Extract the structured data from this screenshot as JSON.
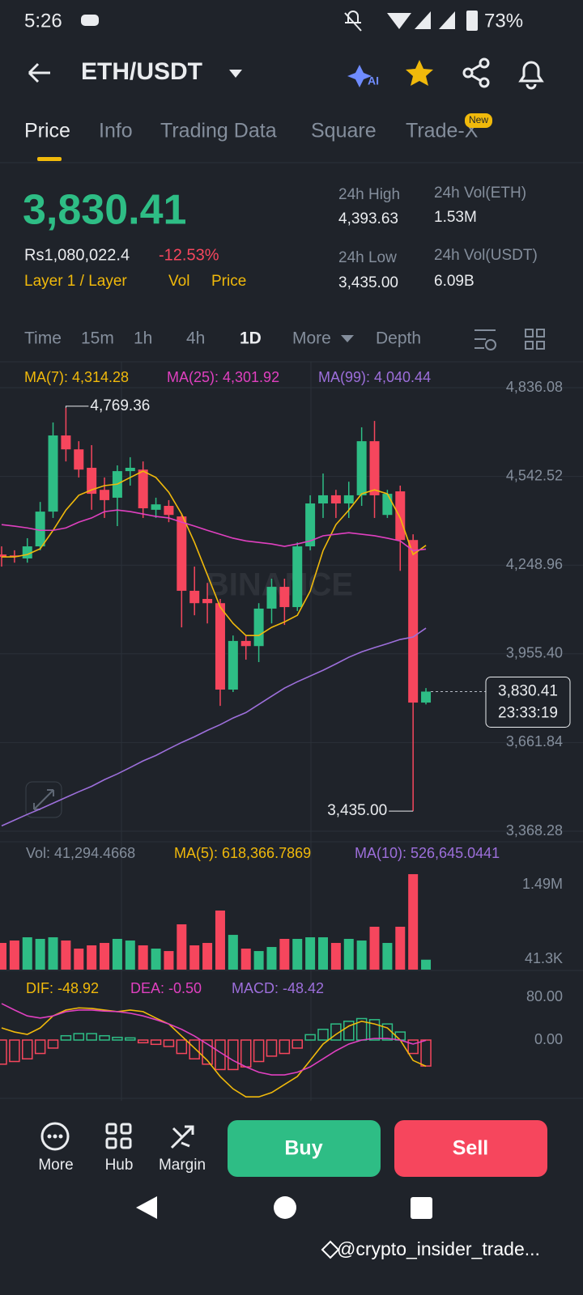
{
  "status_bar": {
    "time": "5:26",
    "battery": "73%"
  },
  "header": {
    "pair": "ETH/USDT",
    "ai": "AI"
  },
  "tabs": [
    "Price",
    "Info",
    "Trading Data",
    "Square",
    "Trade-X"
  ],
  "new_badge": "New",
  "ticker": {
    "price": "3,830.41",
    "fiat": "Rs1,080,022.4",
    "change": "-12.53%",
    "tags": [
      "Layer 1 / Layer",
      "Vol",
      "Price"
    ],
    "stats": [
      {
        "label": "24h High",
        "value": "4,393.63"
      },
      {
        "label": "24h Vol(ETH)",
        "value": "1.53M"
      },
      {
        "label": "24h Low",
        "value": "3,435.00"
      },
      {
        "label": "24h Vol(USDT)",
        "value": "6.09B"
      }
    ]
  },
  "intervals": [
    "Time",
    "15m",
    "1h",
    "4h",
    "1D",
    "More",
    "Depth"
  ],
  "chart_data": [
    {
      "type": "candlestick",
      "up_color": "#2ebd85",
      "down_color": "#f6465d",
      "open": [
        4284,
        4281,
        4271,
        4311,
        4426,
        4678,
        4632,
        4571,
        4498,
        4472,
        4560,
        4565,
        4432,
        4445,
        4410,
        4164,
        4137,
        4123,
        3837,
        3998,
        3981,
        4105,
        4177,
        4110,
        4311,
        4453,
        4480,
        4453,
        4480,
        4659,
        4415,
        4493,
        4332,
        3794
      ],
      "high": [
        4311,
        4298,
        4338,
        4458,
        4721,
        4769.36,
        4659,
        4646,
        4539,
        4579,
        4606,
        4592,
        4472,
        4464,
        4418,
        4244,
        4190,
        4137,
        4016,
        4016,
        4123,
        4204,
        4204,
        4324,
        4480,
        4552,
        4498,
        4525,
        4705,
        4726,
        4498,
        4512,
        4351,
        3842
      ],
      "low": [
        4244,
        4257,
        4257,
        4298,
        4405,
        4592,
        4539,
        4432,
        4405,
        4378,
        4512,
        4405,
        4405,
        4391,
        4043,
        4083,
        4056,
        3783,
        3829,
        3936,
        3928,
        4056,
        4051,
        4097,
        4298,
        4405,
        4405,
        4405,
        4445,
        4405,
        4405,
        4230,
        3435.0,
        3788
      ],
      "close": [
        4276,
        4276,
        4311,
        4426,
        4678,
        4632,
        4565,
        4485,
        4464,
        4560,
        4571,
        4437,
        4450,
        4415,
        4164,
        4123,
        4123,
        3837,
        3998,
        3981,
        4105,
        4177,
        4110,
        4311,
        4453,
        4480,
        4453,
        4480,
        4659,
        4480,
        4485,
        4332,
        3794,
        3830.41
      ],
      "series": [
        {
          "name": "MA(7): 4,314.28",
          "color": "#f0b90b",
          "values": [
            4276,
            4276,
            4284,
            4303,
            4364,
            4431,
            4480,
            4498,
            4512,
            4517,
            4539,
            4560,
            4539,
            4490,
            4418,
            4324,
            4217,
            4110,
            4056,
            4016,
            4016,
            4043,
            4061,
            4083,
            4163,
            4297,
            4383,
            4431,
            4485,
            4498,
            4485,
            4405,
            4284,
            4314.28
          ]
        },
        {
          "name": "MA(25): 4,301.92",
          "color": "#e040c0",
          "values": [
            4383,
            4378,
            4372,
            4364,
            4364,
            4372,
            4391,
            4405,
            4426,
            4431,
            4426,
            4418,
            4410,
            4405,
            4391,
            4378,
            4364,
            4351,
            4338,
            4329,
            4324,
            4319,
            4311,
            4319,
            4329,
            4346,
            4351,
            4356,
            4351,
            4346,
            4338,
            4329,
            4297,
            4301.92
          ]
        },
        {
          "name": "MA(99): 4,040.44",
          "color": "#9d6fdb",
          "values": [
            3386,
            3405,
            3424,
            3442,
            3461,
            3480,
            3499,
            3517,
            3539,
            3558,
            3579,
            3601,
            3619,
            3641,
            3662,
            3681,
            3702,
            3721,
            3743,
            3761,
            3788,
            3815,
            3842,
            3863,
            3882,
            3901,
            3922,
            3944,
            3962,
            3976,
            3989,
            4003,
            4011,
            4040.44
          ]
        }
      ],
      "ylim": [
        3368.28,
        4836.08
      ],
      "yticks": [
        {
          "value": 4836.08,
          "label": "4,836.08"
        },
        {
          "value": 4542.52,
          "label": "4,542.52"
        },
        {
          "value": 4248.96,
          "label": "4,248.96"
        },
        {
          "value": 3955.4,
          "label": "3,955.40"
        },
        {
          "value": 3661.84,
          "label": "3,661.84"
        },
        {
          "value": 3368.28,
          "label": "3,368.28"
        }
      ],
      "grid": true,
      "high_label": "4,769.36",
      "low_label": "3,435.00",
      "last_price_label": "3,830.41",
      "countdown": "23:33:19",
      "watermark": "BINANCE"
    },
    {
      "type": "bar",
      "legend": [
        {
          "text": "Vol: 41,294.4668",
          "color": "#848e9c"
        },
        {
          "text": "MA(5): 618,366.7869",
          "color": "#f0b90b"
        },
        {
          "text": "MA(10): 526,645.0441",
          "color": "#9d6fdb"
        }
      ],
      "values": [
        356000,
        403000,
        466000,
        435000,
        466000,
        403000,
        246000,
        309000,
        356000,
        435000,
        403000,
        309000,
        246000,
        198000,
        718000,
        309000,
        356000,
        986000,
        513000,
        246000,
        198000,
        277000,
        435000,
        435000,
        466000,
        466000,
        356000,
        435000,
        403000,
        671000,
        356000,
        671000,
        1694000,
        30000
      ],
      "yticks": [
        {
          "value": 1490000,
          "label": "1.49M"
        },
        {
          "value": 41300,
          "label": "41.3K"
        }
      ]
    },
    {
      "type": "macd",
      "series": [
        {
          "name": "DIF: -48.92",
          "color": "#f0b90b",
          "values": [
            22.6,
            15,
            10.6,
            22.6,
            45,
            56,
            60,
            59,
            56,
            53,
            56,
            53,
            41,
            30,
            7.5,
            -15,
            -38,
            -68,
            -91,
            -106,
            -106,
            -98,
            -83,
            -68,
            -38,
            -7.5,
            10.6,
            26,
            35,
            30,
            22.6,
            0,
            -38,
            -48.92
          ]
        },
        {
          "name": "DEA: -0.50",
          "color": "#e040c0",
          "values": [
            68,
            56,
            45,
            41,
            45,
            53,
            56,
            56,
            54,
            53,
            50,
            45,
            38,
            30,
            20,
            7.5,
            -7.5,
            -23,
            -38,
            -50,
            -60,
            -65,
            -65,
            -60,
            -50,
            -35,
            -20,
            -7.5,
            0,
            3,
            3,
            0,
            -7.5,
            -0.5
          ]
        }
      ],
      "histogram": {
        "name": "MACD: -48.42",
        "color": "#9d6fdb",
        "values": [
          -45,
          -40,
          -35,
          -25,
          -15,
          8,
          12,
          12,
          8,
          5,
          4,
          -5,
          -8,
          -12,
          -25,
          -35,
          -45,
          -55,
          -55,
          -50,
          -40,
          -30,
          -25,
          -15,
          10,
          20,
          30,
          35,
          40,
          38,
          30,
          15,
          -25,
          -48.42
        ]
      },
      "yticks": [
        {
          "value": 80,
          "label": "80.00"
        },
        {
          "value": 0,
          "label": "0.00"
        }
      ]
    }
  ],
  "actions": {
    "more": "More",
    "hub": "Hub",
    "margin": "Margin",
    "buy": "Buy",
    "sell": "Sell"
  },
  "watermark_user": "@crypto_insider_trade..."
}
